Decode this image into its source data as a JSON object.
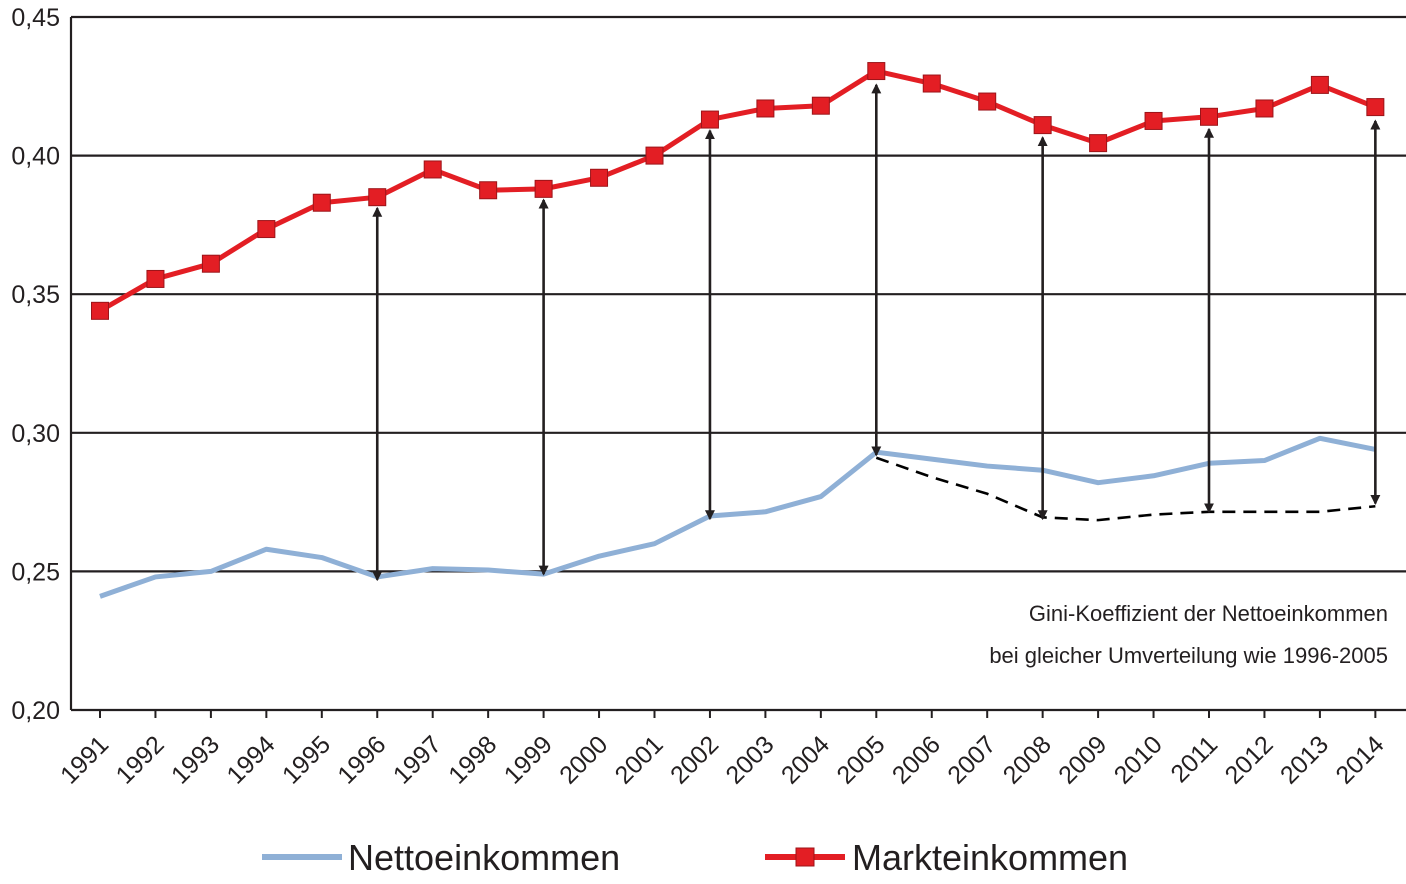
{
  "chart_data": {
    "type": "line",
    "title": "",
    "xlabel": "",
    "ylabel": "",
    "ylim": [
      0.2,
      0.45
    ],
    "yticks": [
      0.2,
      0.25,
      0.3,
      0.35,
      0.4,
      0.45
    ],
    "ytick_labels": [
      "0,20",
      "0,25",
      "0,30",
      "0,35",
      "0,40",
      "0,45"
    ],
    "grid": true,
    "legend_position": "bottom",
    "x": [
      "1991",
      "1992",
      "1993",
      "1994",
      "1995",
      "1996",
      "1997",
      "1998",
      "1999",
      "2000",
      "2001",
      "2002",
      "2003",
      "2004",
      "2005",
      "2006",
      "2007",
      "2008",
      "2009",
      "2010",
      "2011",
      "2012",
      "2013",
      "2014"
    ],
    "series": [
      {
        "name": "Nettoeinkommen",
        "color": "#8fb0d6",
        "marker": "none",
        "values": [
          0.241,
          0.248,
          0.25,
          0.258,
          0.255,
          0.248,
          0.251,
          0.2505,
          0.249,
          0.2555,
          0.26,
          0.27,
          0.2715,
          0.277,
          0.293,
          0.2905,
          0.288,
          0.2865,
          0.282,
          0.2845,
          0.289,
          0.29,
          0.298,
          0.294
        ]
      },
      {
        "name": "Markteinkommen",
        "color": "#e31e24",
        "marker": "square",
        "values": [
          0.344,
          0.3555,
          0.361,
          0.3735,
          0.383,
          0.385,
          0.395,
          0.3875,
          0.388,
          0.392,
          0.4,
          0.413,
          0.417,
          0.418,
          0.4305,
          0.426,
          0.4195,
          0.411,
          0.4045,
          0.4125,
          0.414,
          0.417,
          0.4255,
          0.4175
        ]
      },
      {
        "name": "",
        "style": "dashed",
        "color": "#000000",
        "x": [
          "2005",
          "2006",
          "2007",
          "2008",
          "2009",
          "2010",
          "2011",
          "2012",
          "2013",
          "2014"
        ],
        "values": [
          0.291,
          0.284,
          0.278,
          0.2695,
          0.2685,
          0.2705,
          0.2715,
          0.2715,
          0.2715,
          0.2735
        ]
      }
    ],
    "double_arrows": [
      {
        "x": "1996",
        "from": 0.247,
        "to": 0.381
      },
      {
        "x": "1999",
        "from": 0.249,
        "to": 0.384
      },
      {
        "x": "2002",
        "from": 0.269,
        "to": 0.409
      },
      {
        "x": "2005",
        "from": 0.292,
        "to": 0.4255
      },
      {
        "x": "2008",
        "from": 0.269,
        "to": 0.4065
      },
      {
        "x": "2011",
        "from": 0.2715,
        "to": 0.4095
      },
      {
        "x": "2014",
        "from": 0.2745,
        "to": 0.4125
      }
    ],
    "annotation": [
      "Gini-Koeffizient der Nettoeinkommen",
      "bei gleicher Umverteilung wie 1996-2005"
    ]
  }
}
